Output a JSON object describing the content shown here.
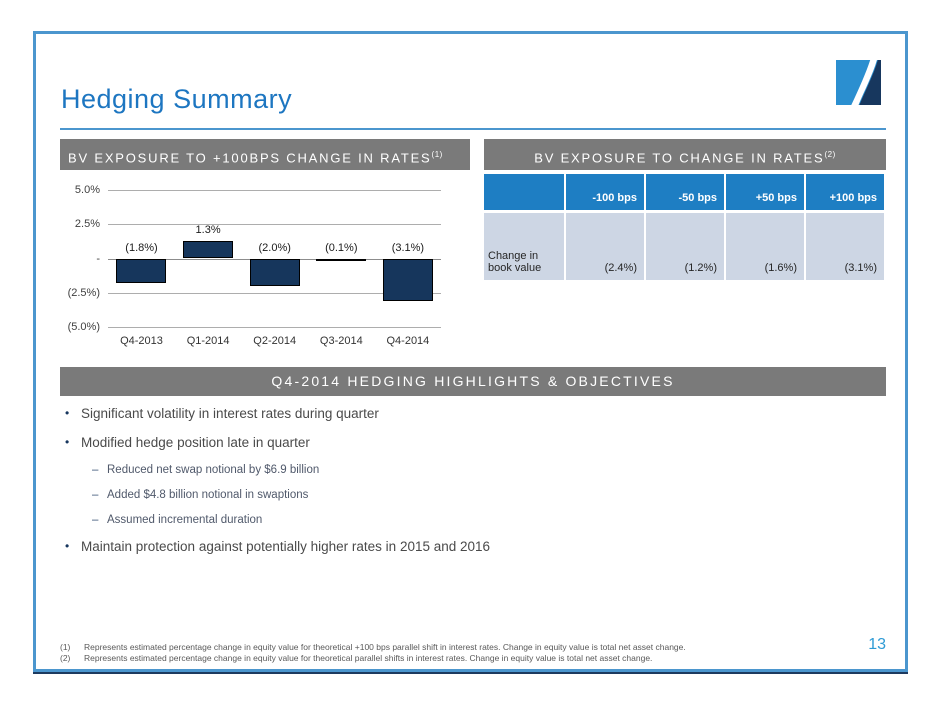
{
  "slide": {
    "title": "Hedging Summary",
    "page_number": "13"
  },
  "colors": {
    "accent_blue": "#1D76C1",
    "frame_blue": "#4B96CE",
    "banner_gray": "#7A7A7A",
    "table_header_blue": "#1E7EC3",
    "table_row_bg": "#CDD6E4",
    "bar_navy": "#16365C",
    "logo_light_blue": "#2B8FD0",
    "logo_navy": "#17375E"
  },
  "chart_section": {
    "header": "BV EXPOSURE TO +100BPS CHANGE IN RATES",
    "header_sup": "(1)"
  },
  "chart_data": {
    "type": "bar",
    "title": "BV EXPOSURE TO +100BPS CHANGE IN RATES (1)",
    "categories": [
      "Q4-2013",
      "Q1-2014",
      "Q2-2014",
      "Q3-2014",
      "Q4-2014"
    ],
    "values": [
      -1.8,
      1.3,
      -2.0,
      -0.1,
      -3.1
    ],
    "bar_labels": [
      "(1.8%)",
      "1.3%",
      "(2.0%)",
      "(0.1%)",
      "(3.1%)"
    ],
    "y_tick_values": [
      5,
      2.5,
      0,
      -2.5,
      -5
    ],
    "y_tick_labels": [
      "5.0%",
      "2.5%",
      "-",
      "(2.5%)",
      "(5.0%)"
    ],
    "ylim": [
      -5,
      5
    ],
    "xlabel": "",
    "ylabel": "",
    "grid": true,
    "legend": false,
    "bar_color": "#16365C"
  },
  "table_section": {
    "header": "BV EXPOSURE TO CHANGE IN RATES",
    "header_sup": "(2)",
    "columns": [
      "",
      "-100 bps",
      "-50 bps",
      "+50 bps",
      "+100 bps"
    ],
    "rows": [
      {
        "label": "Change in book value",
        "values": [
          "(2.4%)",
          "(1.2%)",
          "(1.6%)",
          "(3.1%)"
        ]
      }
    ]
  },
  "highlights": {
    "header": "Q4-2014 HEDGING HIGHLIGHTS & OBJECTIVES",
    "bullets": [
      {
        "level": 1,
        "text": "Significant volatility in interest rates during quarter"
      },
      {
        "level": 1,
        "text": "Modified hedge position late in quarter"
      },
      {
        "level": 2,
        "text": "Reduced net swap notional by $6.9 billion"
      },
      {
        "level": 2,
        "text": "Added $4.8 billion notional in swaptions"
      },
      {
        "level": 2,
        "text": "Assumed incremental duration"
      },
      {
        "level": 1,
        "text": "Maintain protection against potentially higher rates in 2015 and 2016"
      }
    ]
  },
  "footnotes": [
    {
      "num": "(1)",
      "text": "Represents estimated percentage change in equity value for theoretical +100 bps parallel shift  in interest rates.  Change in equity value is total net asset change."
    },
    {
      "num": "(2)",
      "text": "Represents estimated percentage change in equity value for theoretical parallel shifts in interest rates.  Change in equity value is total net asset change."
    }
  ]
}
